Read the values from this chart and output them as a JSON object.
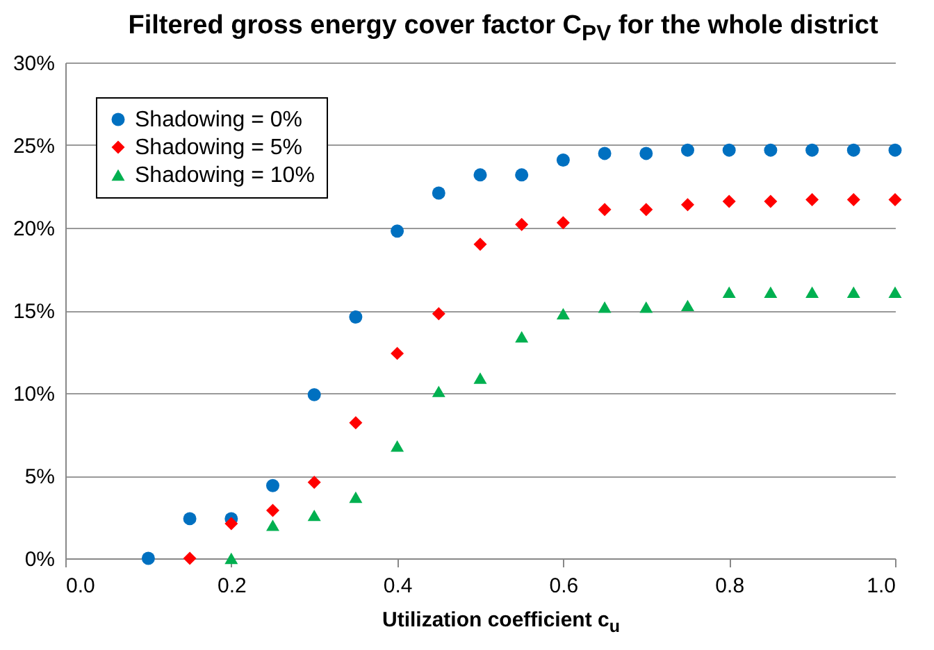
{
  "chart_data": {
    "type": "scatter",
    "title": "Filtered gross energy cover factor C$_{PV}$ for the whole district",
    "xlabel": "Utilization coefficient c$_{u}$",
    "x": [
      0.1,
      0.15,
      0.2,
      0.25,
      0.3,
      0.35,
      0.4,
      0.45,
      0.5,
      0.55,
      0.6,
      0.65,
      0.7,
      0.75,
      0.8,
      0.85,
      0.9,
      0.95,
      1.0
    ],
    "series": [
      {
        "name": "Shadowing = 0%",
        "color": "#0070c0",
        "marker": "circle",
        "values": [
          0,
          2.4,
          2.4,
          4.4,
          9.9,
          14.6,
          19.8,
          22.1,
          23.2,
          23.2,
          24.1,
          24.5,
          24.5,
          24.7,
          24.7,
          24.7,
          24.7,
          24.7,
          24.7
        ]
      },
      {
        "name": "Shadowing = 5%",
        "color": "#ff0000",
        "marker": "diamond",
        "values": [
          null,
          0,
          2.1,
          2.9,
          4.6,
          8.2,
          12.4,
          14.8,
          19.0,
          20.2,
          20.3,
          21.1,
          21.1,
          21.4,
          21.6,
          21.6,
          21.7,
          21.7,
          21.7
        ]
      },
      {
        "name": "Shadowing = 10%",
        "color": "#00b050",
        "marker": "triangle",
        "values": [
          null,
          null,
          0,
          2.0,
          2.6,
          3.7,
          6.8,
          10.1,
          10.9,
          13.4,
          14.8,
          15.2,
          15.2,
          15.3,
          16.1,
          16.1,
          16.1,
          16.1,
          16.1
        ]
      }
    ],
    "xlim": [
      0,
      1
    ],
    "xticks": [
      {
        "value": 0,
        "label": "0.0"
      },
      0.2,
      0.4,
      0.6,
      0.8,
      {
        "value": 1,
        "label": "1.0"
      }
    ],
    "ylim": [
      0,
      30
    ],
    "yticks": [
      {
        "value": 0,
        "label": "0%"
      },
      {
        "value": 5,
        "label": "5%"
      },
      {
        "value": 10,
        "label": "10%"
      },
      {
        "value": 15,
        "label": "15%"
      },
      {
        "value": 20,
        "label": "20%"
      },
      {
        "value": 25,
        "label": "25%"
      },
      {
        "value": 30,
        "label": "30%"
      }
    ],
    "grid": "y",
    "legend": "top left"
  }
}
